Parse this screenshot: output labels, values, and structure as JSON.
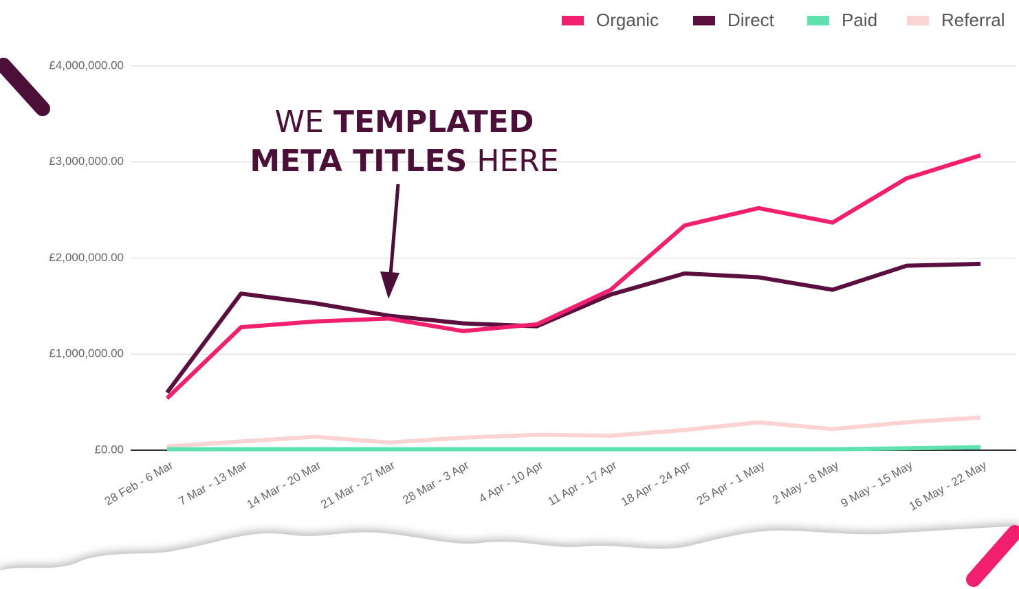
{
  "chart_data": {
    "type": "line",
    "annotation": {
      "lines": [
        [
          "WE",
          "TEMPLATED"
        ],
        [
          "META TITLES",
          "HERE"
        ]
      ]
    },
    "categories": [
      "28 Feb - 6 Mar",
      "7 Mar - 13 Mar",
      "14 Mar - 20 Mar",
      "21 Mar - 27 Mar",
      "28 Mar - 3 Apr",
      "4 Apr - 10 Apr",
      "11 Apr - 17 Apr",
      "18 Apr - 24 Apr",
      "25 Apr - 1 May",
      "2 May - 8 May",
      "9 May - 15 May",
      "16 May - 22 May"
    ],
    "series": [
      {
        "name": "Organic",
        "color": "#f21f6f",
        "values": [
          540000,
          1280000,
          1340000,
          1370000,
          1240000,
          1310000,
          1670000,
          2340000,
          2520000,
          2370000,
          2830000,
          3070000
        ]
      },
      {
        "name": "Direct",
        "color": "#5a0f3e",
        "values": [
          600000,
          1630000,
          1530000,
          1400000,
          1320000,
          1290000,
          1620000,
          1840000,
          1800000,
          1670000,
          1920000,
          1940000
        ]
      },
      {
        "name": "Paid",
        "color": "#5ee3b0",
        "values": [
          10000,
          10000,
          10000,
          10000,
          10000,
          10000,
          10000,
          10000,
          10000,
          10000,
          20000,
          30000
        ]
      },
      {
        "name": "Referral",
        "color": "#fcd3d3",
        "values": [
          40000,
          90000,
          140000,
          80000,
          130000,
          160000,
          150000,
          210000,
          290000,
          220000,
          290000,
          340000
        ]
      }
    ],
    "ylim": [
      0,
      4000000
    ],
    "yticks": [
      {
        "value": 0,
        "label": "£0.00"
      },
      {
        "value": 1000000,
        "label": "£1,000,000.00"
      },
      {
        "value": 2000000,
        "label": "£2,000,000.00"
      },
      {
        "value": 3000000,
        "label": "£3,000,000.00"
      },
      {
        "value": 4000000,
        "label": "£4,000,000.00"
      }
    ],
    "grid": true,
    "legend": "top-right"
  }
}
